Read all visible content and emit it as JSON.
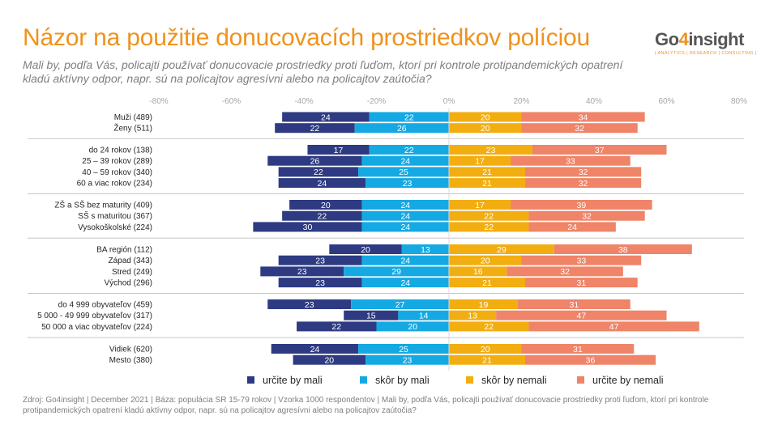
{
  "title": "Názor na použitie donucovacích prostriedkov políciou",
  "subtitle": "Mali by, podľa Vás, policajti používať donucovacie prostriedky proti ľuďom, ktorí pri kontrole protipandemických opatrení kladú aktívny odpor, napr. sú na policajtov agresívni alebo na policajtov zaútočia?",
  "logo": {
    "main_pre": "Go",
    "main_four": "4",
    "main_post": "insight",
    "tagline": "| ANALYTICS | RESEARCH | CONSULTING |"
  },
  "footnote": "Zdroj: Go4insight | December 2021 | Báza: populácia SR 15-79 rokov | Vzorka 1000 respondentov | Mali by, podľa Vás, policajti používať donucovacie prostriedky proti ľuďom, ktorí pri kontrole protipandemických opatrení kladú aktívny odpor, napr. sú na policajtov agresívni alebo na policajtov zaútočia?",
  "colors": {
    "urcite_mali": "#2e3b82",
    "skor_mali": "#14a9e3",
    "skor_nemali": "#f2ae10",
    "urcite_nemali": "#ef8468",
    "title": "#f0921c"
  },
  "chart_data": {
    "type": "bar",
    "orientation": "horizontal",
    "stacking": "diverging",
    "xlim": [
      -80,
      80
    ],
    "x_ticks": [
      "-80%",
      "-60%",
      "-40%",
      "-20%",
      "0%",
      "20%",
      "40%",
      "60%",
      "80%"
    ],
    "grid": false,
    "legend_position": "bottom",
    "series": [
      {
        "name": "určite by mali",
        "side": "negative"
      },
      {
        "name": "skôr by mali",
        "side": "negative"
      },
      {
        "name": "skôr by nemali",
        "side": "positive"
      },
      {
        "name": "určite by nemali",
        "side": "positive"
      }
    ],
    "groups": [
      {
        "rows": [
          {
            "label": "Muži (489)",
            "values": [
              24,
              22,
              20,
              34
            ]
          },
          {
            "label": "Ženy (511)",
            "values": [
              22,
              26,
              20,
              32
            ]
          }
        ]
      },
      {
        "rows": [
          {
            "label": "do 24 rokov (138)",
            "values": [
              17,
              22,
              23,
              37
            ]
          },
          {
            "label": "25 – 39 rokov (289)",
            "values": [
              26,
              24,
              17,
              33
            ]
          },
          {
            "label": "40 – 59 rokov (340)",
            "values": [
              22,
              25,
              21,
              32
            ]
          },
          {
            "label": "60 a viac rokov (234)",
            "values": [
              24,
              23,
              21,
              32
            ]
          }
        ]
      },
      {
        "rows": [
          {
            "label": "ZŠ a SŠ bez maturity (409)",
            "values": [
              20,
              24,
              17,
              39
            ]
          },
          {
            "label": "SŠ s maturitou (367)",
            "values": [
              22,
              24,
              22,
              32
            ]
          },
          {
            "label": "Vysokoškolské (224)",
            "values": [
              30,
              24,
              22,
              24
            ]
          }
        ]
      },
      {
        "rows": [
          {
            "label": "BA región (112)",
            "values": [
              20,
              13,
              29,
              38
            ]
          },
          {
            "label": "Západ (343)",
            "values": [
              23,
              24,
              20,
              33
            ]
          },
          {
            "label": "Stred (249)",
            "values": [
              23,
              29,
              16,
              32
            ]
          },
          {
            "label": "Východ (296)",
            "values": [
              23,
              24,
              21,
              31
            ]
          }
        ]
      },
      {
        "rows": [
          {
            "label": "do 4 999 obyvateľov (459)",
            "values": [
              23,
              27,
              19,
              31
            ]
          },
          {
            "label": "5 000 - 49 999 obyvateľov (317)",
            "values": [
              15,
              14,
              13,
              47
            ]
          },
          {
            "label": "50 000 a viac obyvateľov (224)",
            "values": [
              22,
              20,
              22,
              47
            ]
          }
        ]
      },
      {
        "rows": [
          {
            "label": "Vidiek (620)",
            "values": [
              24,
              25,
              20,
              31
            ]
          },
          {
            "label": "Mesto (380)",
            "values": [
              20,
              23,
              21,
              36
            ]
          }
        ]
      }
    ]
  }
}
